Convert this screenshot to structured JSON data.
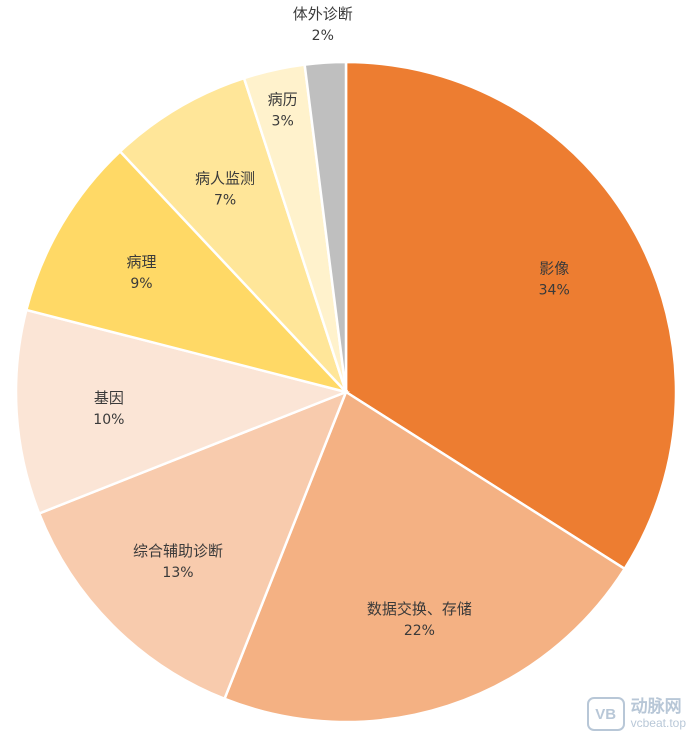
{
  "chart_data": {
    "type": "pie",
    "slices": [
      {
        "label": "影像",
        "value": 34,
        "display": "34%",
        "color": "#ED7D31"
      },
      {
        "label": "数据交换、存储",
        "value": 22,
        "display": "22%",
        "color": "#F4B183"
      },
      {
        "label": "综合辅助诊断",
        "value": 13,
        "display": "13%",
        "color": "#F8CBAD"
      },
      {
        "label": "基因",
        "value": 10,
        "display": "10%",
        "color": "#FBE5D6"
      },
      {
        "label": "病理",
        "value": 9,
        "display": "9%",
        "color": "#FFD966"
      },
      {
        "label": "病人监测",
        "value": 7,
        "display": "7%",
        "color": "#FFE699"
      },
      {
        "label": "病历",
        "value": 3,
        "display": "3%",
        "color": "#FFF2CC"
      },
      {
        "label": "体外诊断",
        "value": 2,
        "display": "2%",
        "color": "#BFBFBF"
      }
    ],
    "start_angle_deg": 0,
    "direction": "clockwise",
    "data_labels": "name and percentage"
  },
  "watermark": {
    "logo_text": "VB",
    "name": "动脉网",
    "url": "vcbeat.top"
  }
}
